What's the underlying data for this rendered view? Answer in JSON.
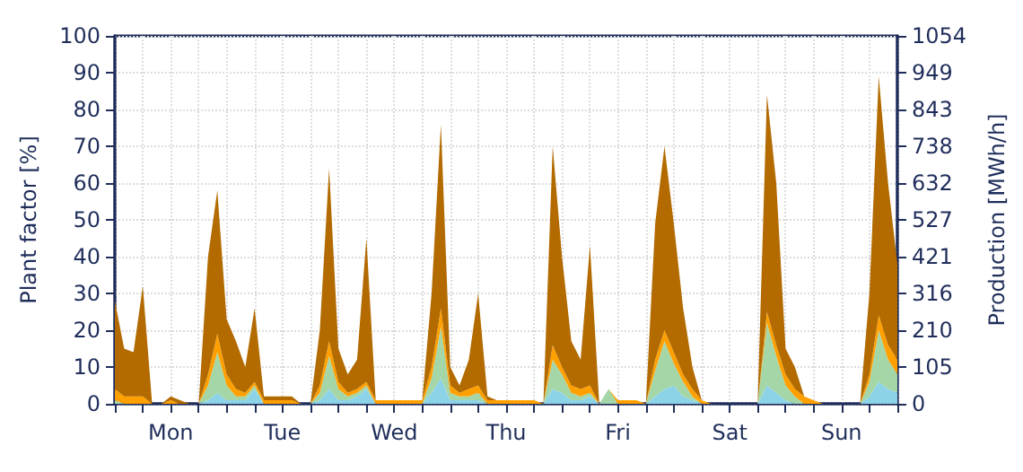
{
  "chart_data": {
    "type": "area",
    "stacked": true,
    "ylabel": "Plant factor [%]",
    "y2label": "Production [MWh/h]",
    "categories": [
      null,
      null,
      null,
      null,
      null,
      null,
      "Mon",
      null,
      null,
      null,
      null,
      null,
      null,
      null,
      null,
      null,
      null,
      null,
      "Tue",
      null,
      null,
      null,
      null,
      null,
      null,
      null,
      null,
      null,
      null,
      null,
      "Wed",
      null,
      null,
      null,
      null,
      null,
      null,
      null,
      null,
      null,
      null,
      null,
      "Thu",
      null,
      null,
      null,
      null,
      null,
      null,
      null,
      null,
      null,
      null,
      null,
      "Fri",
      null,
      null,
      null,
      null,
      null,
      null,
      null,
      null,
      null,
      null,
      null,
      "Sat",
      null,
      null,
      null,
      null,
      null,
      null,
      null,
      null,
      null,
      null,
      null,
      "Sun",
      null,
      null,
      null,
      null,
      null,
      null
    ],
    "series": [
      {
        "color": "#8dd3e8",
        "values": [
          0,
          0,
          0,
          0,
          0,
          0,
          0,
          0,
          0,
          0,
          1,
          3,
          1,
          1,
          1,
          4,
          0,
          0,
          0,
          0,
          0,
          0,
          1,
          4,
          1,
          1,
          2,
          4,
          0,
          0,
          0,
          0,
          0,
          0,
          3,
          7,
          1,
          1,
          1,
          1,
          0,
          0,
          0,
          0,
          0,
          0,
          0,
          4,
          3,
          1,
          1,
          2,
          0,
          0,
          0,
          0,
          0,
          0,
          2,
          4,
          5,
          2,
          1,
          0,
          0,
          0,
          0,
          0,
          0,
          0,
          5,
          3,
          1,
          0,
          0,
          0,
          0,
          0,
          0,
          0,
          0,
          2,
          6,
          4,
          3
        ]
      },
      {
        "color": "#a5d6a7",
        "values": [
          1,
          0,
          0,
          0,
          0,
          0,
          0,
          0,
          0,
          0,
          4,
          11,
          4,
          1,
          1,
          1,
          0,
          0,
          0,
          0,
          0,
          0,
          2,
          9,
          3,
          1,
          1,
          1,
          0,
          0,
          0,
          0,
          0,
          0,
          4,
          14,
          2,
          1,
          1,
          2,
          0,
          0,
          0,
          0,
          0,
          0,
          0,
          8,
          5,
          2,
          1,
          1,
          0,
          4,
          0,
          0,
          0,
          0,
          7,
          13,
          6,
          4,
          1,
          0,
          0,
          0,
          0,
          0,
          0,
          0,
          17,
          10,
          4,
          2,
          0,
          0,
          0,
          0,
          0,
          0,
          0,
          4,
          14,
          8,
          5
        ]
      },
      {
        "color": "#ffa000",
        "values": [
          3,
          2,
          2,
          2,
          0,
          0,
          1,
          0,
          0,
          0,
          3,
          5,
          3,
          2,
          1,
          1,
          1,
          1,
          1,
          1,
          0,
          0,
          2,
          4,
          2,
          1,
          1,
          1,
          1,
          1,
          1,
          1,
          1,
          1,
          3,
          5,
          2,
          1,
          2,
          2,
          1,
          1,
          1,
          1,
          1,
          1,
          0,
          4,
          2,
          2,
          2,
          2,
          0,
          0,
          1,
          1,
          1,
          0,
          3,
          3,
          3,
          2,
          2,
          1,
          0,
          0,
          0,
          0,
          0,
          0,
          3,
          3,
          3,
          2,
          2,
          1,
          0,
          0,
          0,
          0,
          0,
          2,
          4,
          4,
          4
        ]
      },
      {
        "color": "#b36b00",
        "values": [
          24,
          13,
          12,
          30,
          0,
          0,
          1,
          1,
          0,
          0,
          32,
          39,
          15,
          13,
          7,
          20,
          1,
          1,
          1,
          1,
          0,
          0,
          15,
          47,
          9,
          5,
          8,
          39,
          0,
          0,
          0,
          0,
          0,
          0,
          20,
          50,
          5,
          2,
          8,
          25,
          1,
          0,
          0,
          0,
          0,
          0,
          0,
          54,
          30,
          12,
          8,
          38,
          0,
          0,
          0,
          0,
          0,
          0,
          37,
          50,
          35,
          18,
          6,
          0,
          0,
          0,
          0,
          0,
          0,
          0,
          59,
          44,
          7,
          6,
          0,
          0,
          0,
          0,
          0,
          0,
          0,
          22,
          65,
          44,
          26
        ]
      }
    ],
    "ylim": [
      0,
      100
    ],
    "yticks": [
      0,
      10,
      20,
      30,
      40,
      50,
      60,
      70,
      80,
      90,
      100
    ],
    "y2lim": [
      0,
      1054
    ],
    "y2ticks": [
      0,
      105,
      210,
      316,
      421,
      527,
      632,
      738,
      843,
      949,
      1054
    ],
    "grid": true,
    "marker": "none"
  }
}
